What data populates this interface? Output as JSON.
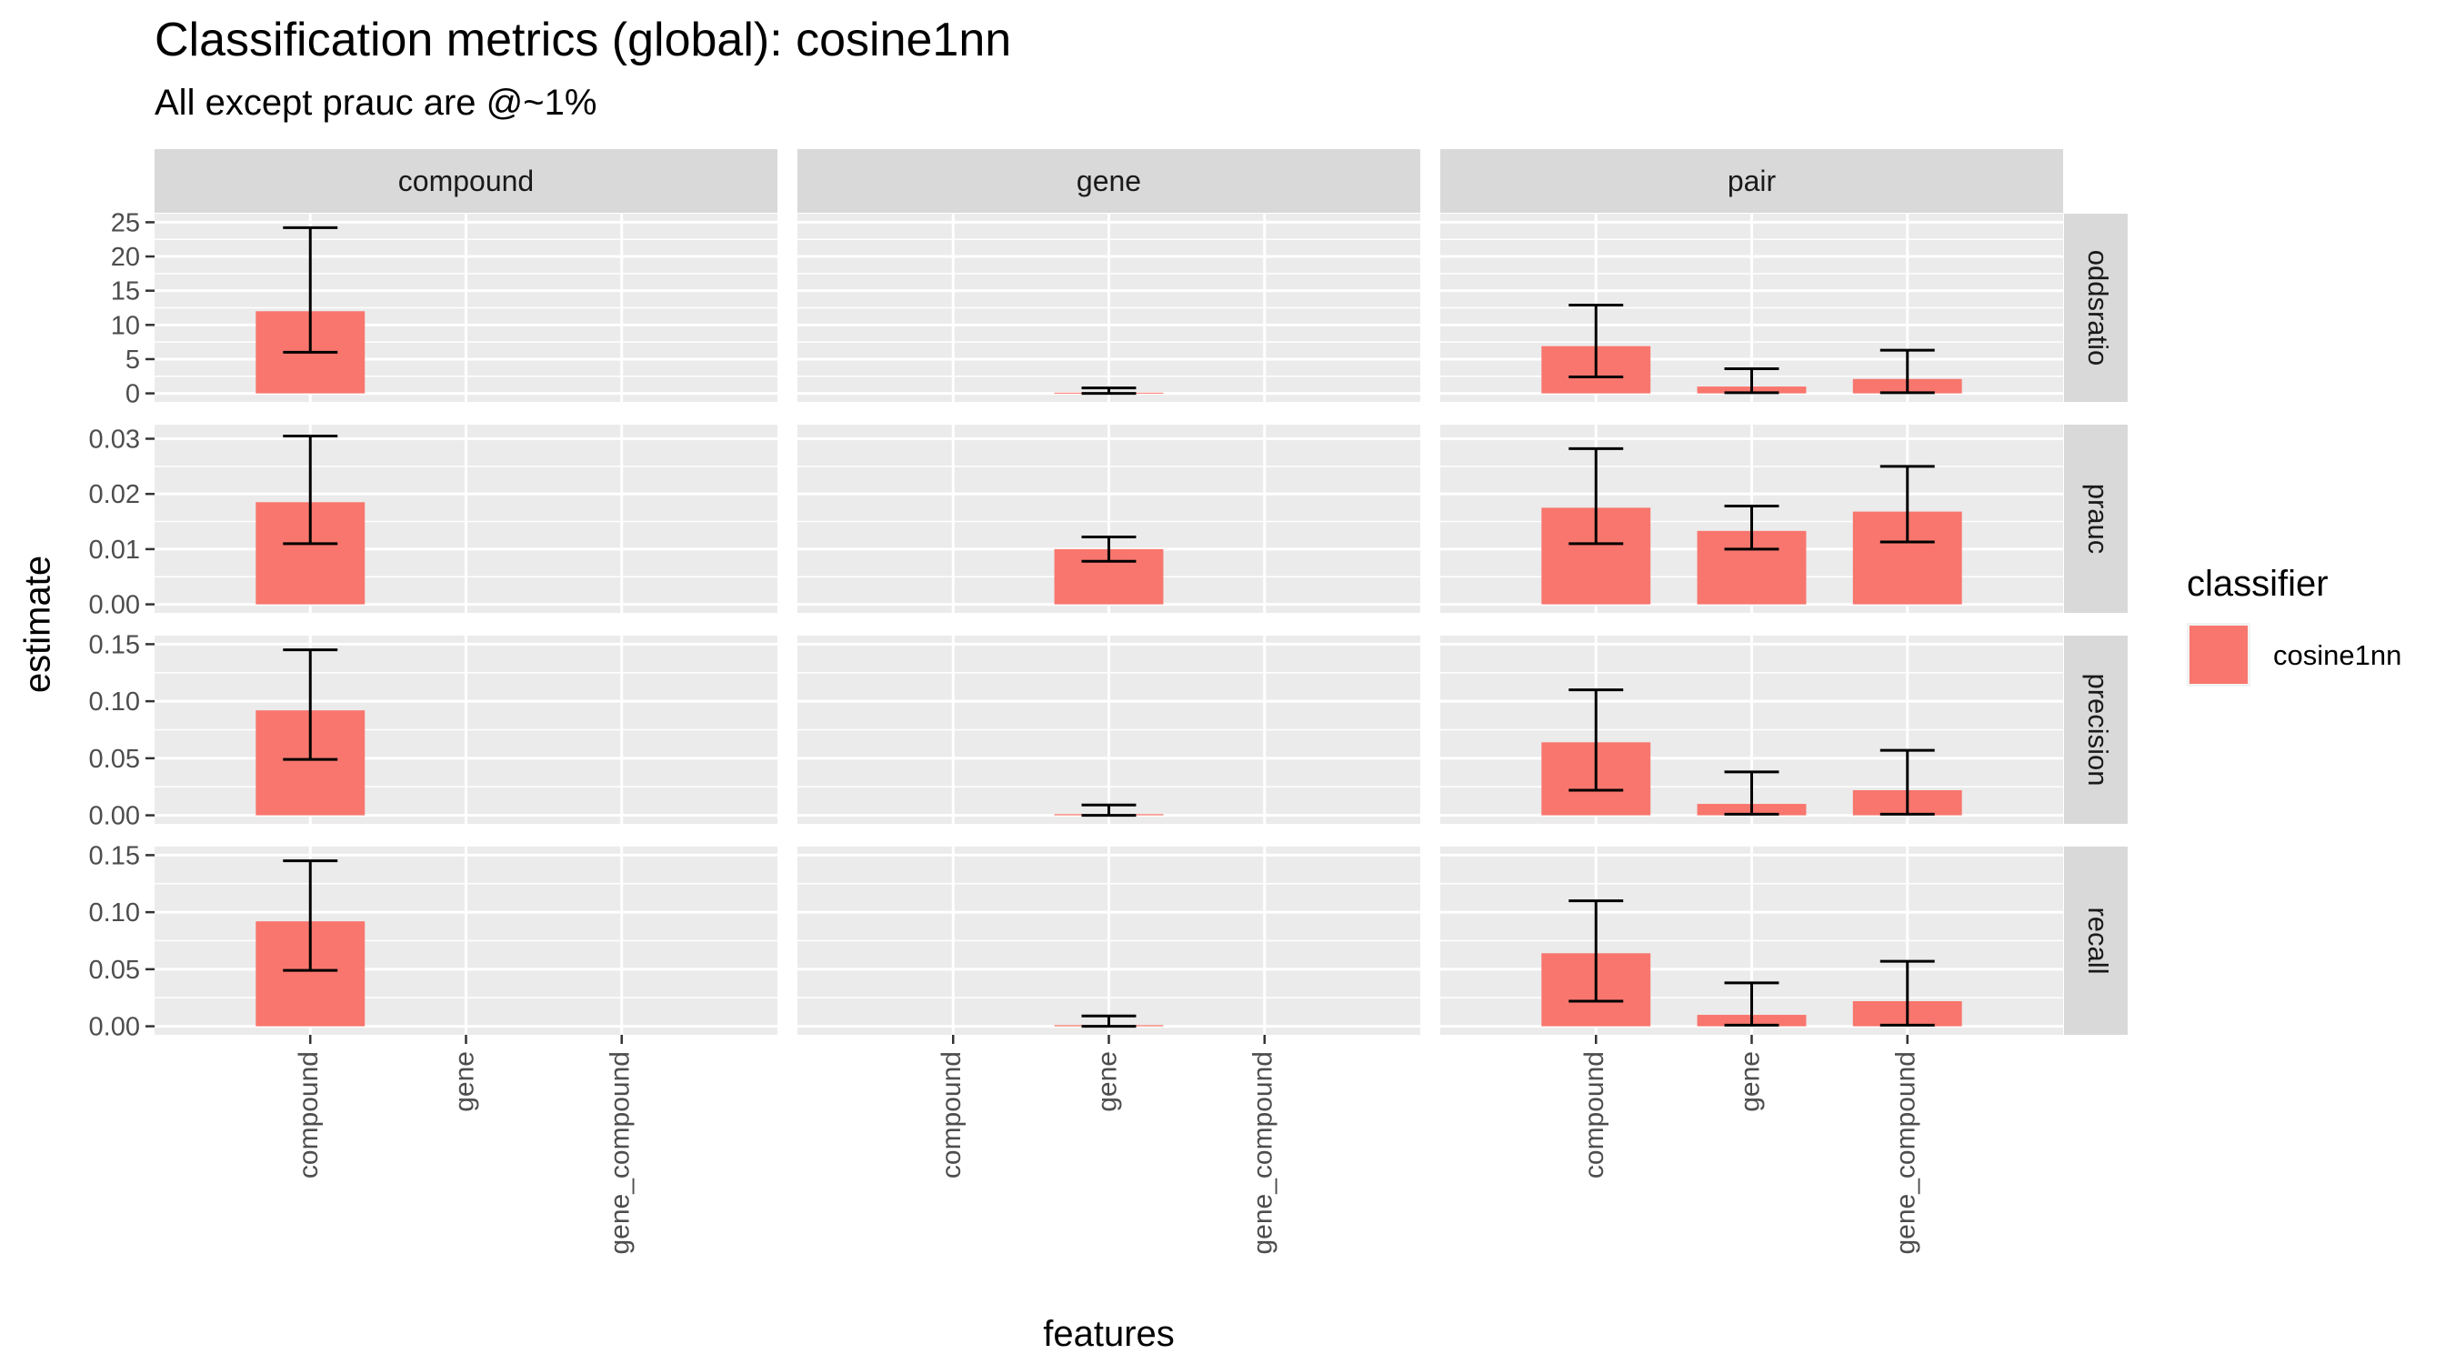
{
  "chart_data": {
    "type": "bar",
    "title": "Classification metrics (global): cosine1nn",
    "subtitle": "All except prauc are @~1%",
    "xlabel": "features",
    "ylabel": "estimate",
    "facet_columns": [
      "compound",
      "gene",
      "pair"
    ],
    "facet_rows": [
      "oddsratio",
      "prauc",
      "precision",
      "recall"
    ],
    "categories": [
      "compound",
      "gene",
      "gene_compound"
    ],
    "legend": {
      "title": "classifier",
      "placement": "right",
      "entries": [
        {
          "name": "cosine1nn",
          "color": "#F8766D"
        }
      ]
    },
    "rows": [
      {
        "metric": "oddsratio",
        "ylim": [
          0,
          25
        ],
        "ticks": [
          0,
          5,
          10,
          15,
          20,
          25
        ],
        "tick_labels": [
          "0",
          "5",
          "10",
          "15",
          "20",
          "25"
        ]
      },
      {
        "metric": "prauc",
        "ylim": [
          0,
          0.031
        ],
        "ticks": [
          0,
          0.01,
          0.02,
          0.03
        ],
        "tick_labels": [
          "0.00",
          "0.01",
          "0.02",
          "0.03"
        ]
      },
      {
        "metric": "precision",
        "ylim": [
          0,
          0.15
        ],
        "ticks": [
          0,
          0.05,
          0.1,
          0.15
        ],
        "tick_labels": [
          "0.00",
          "0.05",
          "0.10",
          "0.15"
        ]
      },
      {
        "metric": "recall",
        "ylim": [
          0,
          0.15
        ],
        "ticks": [
          0,
          0.05,
          0.1,
          0.15
        ],
        "tick_labels": [
          "0.00",
          "0.05",
          "0.10",
          "0.15"
        ]
      }
    ],
    "bars": [
      {
        "facet_column": "compound",
        "metric": "oddsratio",
        "feature": "compound",
        "value": 12.0,
        "lower": 6.0,
        "upper": 24.2
      },
      {
        "facet_column": "gene",
        "metric": "oddsratio",
        "feature": "gene",
        "value": 0.1,
        "lower": 0.0,
        "upper": 0.8
      },
      {
        "facet_column": "pair",
        "metric": "oddsratio",
        "feature": "compound",
        "value": 6.9,
        "lower": 2.4,
        "upper": 12.9
      },
      {
        "facet_column": "pair",
        "metric": "oddsratio",
        "feature": "gene",
        "value": 1.0,
        "lower": 0.1,
        "upper": 3.6
      },
      {
        "facet_column": "pair",
        "metric": "oddsratio",
        "feature": "gene_compound",
        "value": 2.1,
        "lower": 0.1,
        "upper": 6.3
      },
      {
        "facet_column": "compound",
        "metric": "prauc",
        "feature": "compound",
        "value": 0.0185,
        "lower": 0.011,
        "upper": 0.0305
      },
      {
        "facet_column": "gene",
        "metric": "prauc",
        "feature": "gene",
        "value": 0.01,
        "lower": 0.0078,
        "upper": 0.0122
      },
      {
        "facet_column": "pair",
        "metric": "prauc",
        "feature": "compound",
        "value": 0.0175,
        "lower": 0.011,
        "upper": 0.0282
      },
      {
        "facet_column": "pair",
        "metric": "prauc",
        "feature": "gene",
        "value": 0.0133,
        "lower": 0.01,
        "upper": 0.0178
      },
      {
        "facet_column": "pair",
        "metric": "prauc",
        "feature": "gene_compound",
        "value": 0.0168,
        "lower": 0.0113,
        "upper": 0.025
      },
      {
        "facet_column": "compound",
        "metric": "precision",
        "feature": "compound",
        "value": 0.092,
        "lower": 0.049,
        "upper": 0.145
      },
      {
        "facet_column": "gene",
        "metric": "precision",
        "feature": "gene",
        "value": 0.001,
        "lower": 0.0,
        "upper": 0.009
      },
      {
        "facet_column": "pair",
        "metric": "precision",
        "feature": "compound",
        "value": 0.064,
        "lower": 0.022,
        "upper": 0.11
      },
      {
        "facet_column": "pair",
        "metric": "precision",
        "feature": "gene",
        "value": 0.01,
        "lower": 0.001,
        "upper": 0.038
      },
      {
        "facet_column": "pair",
        "metric": "precision",
        "feature": "gene_compound",
        "value": 0.022,
        "lower": 0.001,
        "upper": 0.057
      },
      {
        "facet_column": "compound",
        "metric": "recall",
        "feature": "compound",
        "value": 0.092,
        "lower": 0.049,
        "upper": 0.145
      },
      {
        "facet_column": "gene",
        "metric": "recall",
        "feature": "gene",
        "value": 0.001,
        "lower": 0.0,
        "upper": 0.009
      },
      {
        "facet_column": "pair",
        "metric": "recall",
        "feature": "compound",
        "value": 0.064,
        "lower": 0.022,
        "upper": 0.11
      },
      {
        "facet_column": "pair",
        "metric": "recall",
        "feature": "gene",
        "value": 0.01,
        "lower": 0.001,
        "upper": 0.038
      },
      {
        "facet_column": "pair",
        "metric": "recall",
        "feature": "gene_compound",
        "value": 0.022,
        "lower": 0.001,
        "upper": 0.057
      }
    ],
    "grid": true
  }
}
